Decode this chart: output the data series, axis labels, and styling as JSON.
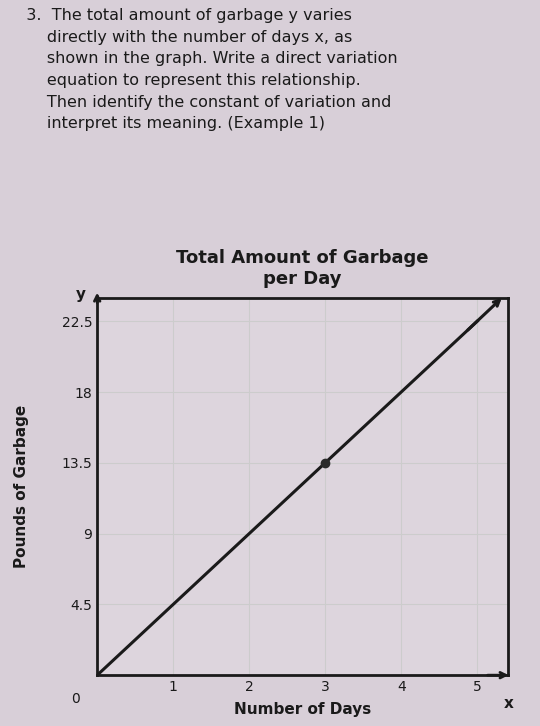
{
  "title_line1": "Total Amount of Garbage",
  "title_line2": "per Day",
  "xlabel": "Number of Days",
  "ylabel": "Pounds of Garbage",
  "x_axis_label": "x",
  "y_axis_label": "y",
  "xlim": [
    0,
    5.4
  ],
  "ylim": [
    0,
    24
  ],
  "xticks": [
    0,
    1,
    2,
    3,
    4,
    5
  ],
  "yticks": [
    0,
    4.5,
    9,
    13.5,
    18,
    22.5
  ],
  "line_x": [
    0,
    5
  ],
  "line_y": [
    0,
    22.5
  ],
  "slope": 4.5,
  "highlight_points": [
    [
      3,
      13.5
    ]
  ],
  "line_color": "#1a1a1a",
  "dot_color": "#2a2a2a",
  "grid_color": "#cccccc",
  "background_color": "#d8cfd8",
  "plot_bg_color": "#ddd5dd",
  "text_color": "#1a1a1a",
  "problem_number": "3.",
  "problem_text_line1": "The total amount of garbage",
  "problem_text_line2": "directly with the number of days",
  "problem_text_line3": "shown in the graph. Write a direct variation",
  "problem_text_line4": "equation to represent this relationship.",
  "problem_text_line5": "Then identify the constant of variation and",
  "problem_text_line6": "interpret its meaning. (Example 1)",
  "title_fontsize": 13,
  "label_fontsize": 11,
  "tick_fontsize": 10
}
